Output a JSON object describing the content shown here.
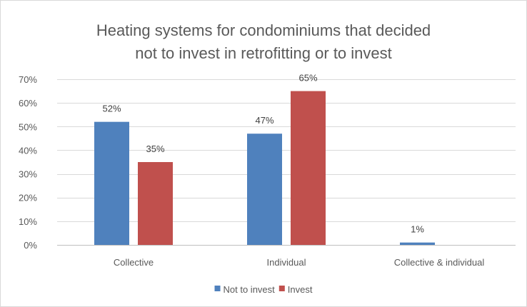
{
  "chart_data": {
    "type": "bar",
    "title": [
      "Heating systems for condominiums  that decided",
      "not to invest in retrofitting or to invest"
    ],
    "categories": [
      "Collective",
      "Individual",
      "Collective & individual"
    ],
    "series": [
      {
        "name": "Not to invest",
        "values": [
          52,
          47,
          1
        ],
        "labels": [
          "52%",
          "47%",
          "1%"
        ],
        "color": "#4f81bd"
      },
      {
        "name": "Invest",
        "values": [
          35,
          65,
          null
        ],
        "labels": [
          "35%",
          "65%",
          ""
        ],
        "color": "#c0504d"
      }
    ],
    "ylim": [
      0,
      70
    ],
    "yticks": [
      {
        "value": 0,
        "label": "0%"
      },
      {
        "value": 10,
        "label": "10%"
      },
      {
        "value": 20,
        "label": "20%"
      },
      {
        "value": 30,
        "label": "30%"
      },
      {
        "value": 40,
        "label": "40%"
      },
      {
        "value": 50,
        "label": "50%"
      },
      {
        "value": 60,
        "label": "60%"
      },
      {
        "value": 70,
        "label": "70%"
      }
    ],
    "grid": true,
    "legend_position": "bottom"
  }
}
